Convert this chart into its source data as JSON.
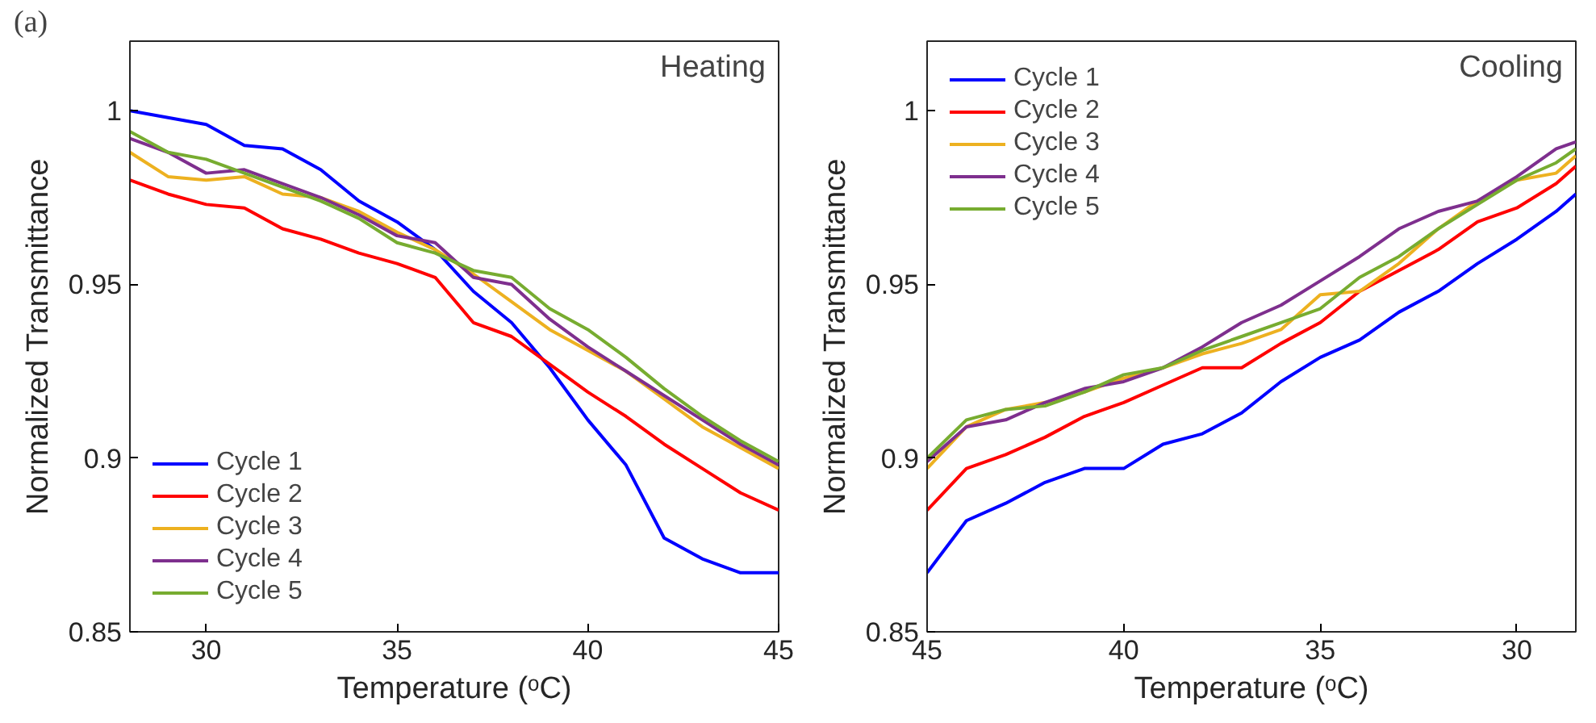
{
  "chart_data": [
    {
      "type": "line",
      "title": "Heating",
      "annotations": [
        "(a)"
      ],
      "xlabel": "Temperature (ᵒC)",
      "ylabel": "Normalized Transmittance",
      "x": [
        28,
        29,
        30,
        31,
        32,
        33,
        34,
        35,
        36,
        37,
        38,
        39,
        40,
        41,
        42,
        43,
        44,
        45
      ],
      "xlim": [
        28,
        45
      ],
      "ylim": [
        0.85,
        1.02
      ],
      "xticks": [
        30,
        35,
        40,
        45
      ],
      "yticks": [
        0.85,
        0.9,
        0.95,
        1
      ],
      "grid": false,
      "legend": "bottom left",
      "series": [
        {
          "name": "Cycle 1",
          "color": "#0000ff",
          "values": [
            1.0,
            0.998,
            0.996,
            0.99,
            0.989,
            0.983,
            0.974,
            0.968,
            0.96,
            0.948,
            0.939,
            0.926,
            0.911,
            0.898,
            0.877,
            0.871,
            0.867,
            0.867
          ]
        },
        {
          "name": "Cycle 2",
          "color": "#ff0000",
          "values": [
            0.98,
            0.976,
            0.973,
            0.972,
            0.966,
            0.963,
            0.959,
            0.956,
            0.952,
            0.939,
            0.935,
            0.927,
            0.919,
            0.912,
            0.904,
            0.897,
            0.89,
            0.885
          ]
        },
        {
          "name": "Cycle 3",
          "color": "#edb120",
          "values": [
            0.988,
            0.981,
            0.98,
            0.981,
            0.976,
            0.975,
            0.971,
            0.965,
            0.96,
            0.953,
            0.945,
            0.937,
            0.931,
            0.925,
            0.917,
            0.909,
            0.903,
            0.897
          ]
        },
        {
          "name": "Cycle 4",
          "color": "#7e2f8e",
          "values": [
            0.992,
            0.988,
            0.982,
            0.983,
            0.979,
            0.975,
            0.97,
            0.964,
            0.962,
            0.952,
            0.95,
            0.94,
            0.932,
            0.925,
            0.918,
            0.911,
            0.904,
            0.898
          ]
        },
        {
          "name": "Cycle 5",
          "color": "#77ac30",
          "values": [
            0.994,
            0.988,
            0.986,
            0.982,
            0.978,
            0.974,
            0.969,
            0.962,
            0.959,
            0.954,
            0.952,
            0.943,
            0.937,
            0.929,
            0.92,
            0.912,
            0.905,
            0.899
          ]
        }
      ]
    },
    {
      "type": "line",
      "title": "Cooling",
      "xlabel": "Temperature (ᵒC)",
      "ylabel": "Normalized Transmittance",
      "x": [
        45,
        44,
        43,
        42,
        41,
        40,
        39,
        38,
        37,
        36,
        35,
        34,
        33,
        32,
        31,
        30,
        29,
        28.5
      ],
      "xlim": [
        45,
        28.5
      ],
      "ylim": [
        0.85,
        1.02
      ],
      "xticks": [
        45,
        40,
        35,
        30
      ],
      "yticks": [
        0.85,
        0.9,
        0.95,
        1
      ],
      "grid": false,
      "legend": "top left",
      "series": [
        {
          "name": "Cycle 1",
          "color": "#0000ff",
          "values": [
            0.867,
            0.882,
            0.887,
            0.893,
            0.897,
            0.897,
            0.904,
            0.907,
            0.913,
            0.922,
            0.929,
            0.934,
            0.942,
            0.948,
            0.956,
            0.963,
            0.971,
            0.976
          ]
        },
        {
          "name": "Cycle 2",
          "color": "#ff0000",
          "values": [
            0.885,
            0.897,
            0.901,
            0.906,
            0.912,
            0.916,
            0.921,
            0.926,
            0.926,
            0.933,
            0.939,
            0.948,
            0.954,
            0.96,
            0.968,
            0.972,
            0.979,
            0.984
          ]
        },
        {
          "name": "Cycle 3",
          "color": "#edb120",
          "values": [
            0.897,
            0.909,
            0.914,
            0.916,
            0.919,
            0.923,
            0.926,
            0.93,
            0.933,
            0.937,
            0.947,
            0.948,
            0.956,
            0.966,
            0.974,
            0.98,
            0.982,
            0.987
          ]
        },
        {
          "name": "Cycle 4",
          "color": "#7e2f8e",
          "values": [
            0.899,
            0.909,
            0.911,
            0.916,
            0.92,
            0.922,
            0.926,
            0.932,
            0.939,
            0.944,
            0.951,
            0.958,
            0.966,
            0.971,
            0.974,
            0.981,
            0.989,
            0.991
          ]
        },
        {
          "name": "Cycle 5",
          "color": "#77ac30",
          "values": [
            0.9,
            0.911,
            0.914,
            0.915,
            0.919,
            0.924,
            0.926,
            0.931,
            0.935,
            0.939,
            0.943,
            0.952,
            0.958,
            0.966,
            0.973,
            0.98,
            0.985,
            0.989
          ]
        }
      ]
    }
  ]
}
